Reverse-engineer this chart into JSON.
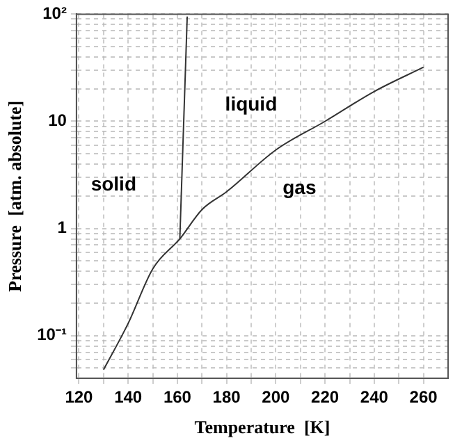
{
  "chart_data": {
    "type": "line",
    "xlabel": "Temperature  [K]",
    "ylabel": "Pressure  [atm. absolute]",
    "log": "y",
    "grid": true,
    "marker": "none",
    "line_style": "solid",
    "xlim": [
      119,
      270
    ],
    "ylim": [
      0.04,
      100
    ],
    "xticks": [
      120,
      {
        "value": 130,
        "label": null
      },
      140,
      {
        "value": 150,
        "label": null
      },
      160,
      {
        "value": 170,
        "label": null
      },
      180,
      {
        "value": 190,
        "label": null
      },
      200,
      {
        "value": 210,
        "label": null
      },
      220,
      {
        "value": 230,
        "label": null
      },
      240,
      {
        "value": 250,
        "label": null
      },
      260
    ],
    "yticks": [
      {
        "value": 0.05,
        "label": null
      },
      {
        "value": 0.06,
        "label": null
      },
      {
        "value": 0.07,
        "label": null
      },
      {
        "value": 0.08,
        "label": null
      },
      {
        "value": 0.09,
        "label": null
      },
      {
        "value": 0.1,
        "label": "10⁻¹"
      },
      {
        "value": 0.2,
        "label": null
      },
      {
        "value": 0.3,
        "label": null
      },
      {
        "value": 0.4,
        "label": null
      },
      {
        "value": 0.5,
        "label": null
      },
      {
        "value": 0.6,
        "label": null
      },
      {
        "value": 0.7,
        "label": null
      },
      {
        "value": 0.8,
        "label": null
      },
      {
        "value": 0.9,
        "label": null
      },
      1,
      {
        "value": 2,
        "label": null
      },
      {
        "value": 3,
        "label": null
      },
      {
        "value": 4,
        "label": null
      },
      {
        "value": 5,
        "label": null
      },
      {
        "value": 6,
        "label": null
      },
      {
        "value": 7,
        "label": null
      },
      {
        "value": 8,
        "label": null
      },
      {
        "value": 9,
        "label": null
      },
      10,
      {
        "value": 20,
        "label": null
      },
      {
        "value": 30,
        "label": null
      },
      {
        "value": 40,
        "label": null
      },
      {
        "value": 50,
        "label": null
      },
      {
        "value": 60,
        "label": null
      },
      {
        "value": 70,
        "label": null
      },
      {
        "value": 80,
        "label": null
      },
      {
        "value": 90,
        "label": null
      },
      {
        "value": 100,
        "label": "10²"
      }
    ],
    "series": [
      {
        "color": "#333333",
        "x": [
          130,
          140,
          150,
          161,
          170,
          180,
          200,
          220,
          240,
          260
        ],
        "values": [
          0.048,
          0.13,
          0.42,
          0.8,
          1.5,
          2.2,
          5.4,
          10,
          19,
          32
        ]
      },
      {
        "color": "#333333",
        "x": [
          161,
          164
        ],
        "values": [
          0.8,
          95
        ]
      }
    ],
    "annotations": [
      "solid",
      "liquid",
      "gas"
    ]
  }
}
